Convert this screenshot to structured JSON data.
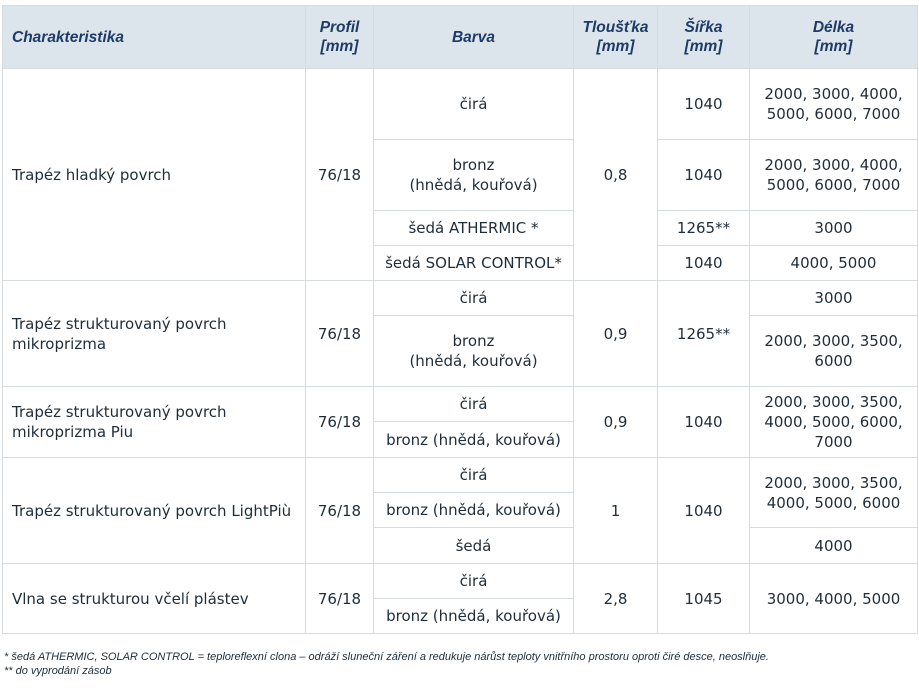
{
  "headers": {
    "charakteristika": "Charakteristika",
    "profil": "Profil\n[mm]",
    "barva": "Barva",
    "tloustka": "Tloušťka\n[mm]",
    "sirka": "Šířka\n[mm]",
    "delka": "Délka\n[mm]"
  },
  "groups": [
    {
      "name": "Trapéz hladký povrch",
      "profil": "76/18",
      "tloustka": "0,8",
      "rows": [
        {
          "barva": "čirá",
          "sirka": "1040",
          "delka": "2000, 3000, 4000,\n5000, 6000, 7000"
        },
        {
          "barva": "bronz\n(hnědá, kouřová)",
          "sirka": "1040",
          "delka": "2000, 3000, 4000,\n5000, 6000, 7000"
        },
        {
          "barva": "šedá ATHERMIC *",
          "sirka": "1265**",
          "delka": "3000"
        },
        {
          "barva": "šedá SOLAR CONTROL*",
          "sirka": "1040",
          "delka": "4000, 5000"
        }
      ]
    },
    {
      "name": "Trapéz strukturovaný povrch\nmikroprizma",
      "profil": "76/18",
      "tloustka": "0,9",
      "sirka": "1265**",
      "rows": [
        {
          "barva": "čirá",
          "delka": "3000"
        },
        {
          "barva": "bronz\n(hnědá, kouřová)",
          "delka": "2000, 3000, 3500,\n6000"
        }
      ]
    },
    {
      "name": "Trapéz strukturovaný povrch\nmikroprizma Piu",
      "profil": "76/18",
      "tloustka": "0,9",
      "sirka": "1040",
      "delka": "2000, 3000, 3500,\n4000, 5000, 6000,\n7000",
      "rows": [
        {
          "barva": "čirá"
        },
        {
          "barva": "bronz (hnědá, kouřová)"
        }
      ]
    },
    {
      "name": "Trapéz strukturovaný povrch LightPiù",
      "profil": "76/18",
      "tloustka": "1",
      "sirka": "1040",
      "delka_top": "2000, 3000, 3500,\n4000, 5000, 6000",
      "delka_bottom": "4000",
      "rows": [
        {
          "barva": "čirá"
        },
        {
          "barva": "bronz (hnědá, kouřová)"
        },
        {
          "barva": "šedá"
        }
      ]
    },
    {
      "name": "Vlna se strukturou včelí plástev",
      "profil": "76/18",
      "tloustka": "2,8",
      "sirka": "1045",
      "delka": "3000, 4000, 5000",
      "rows": [
        {
          "barva": "čirá"
        },
        {
          "barva": "bronz (hnědá, kouřová)"
        }
      ]
    }
  ],
  "footnotes": [
    "* šedá ATHERMIC, SOLAR CONTROL = teploreflexní clona – odráží sluneční záření a redukuje nárůst teploty vnitřního prostoru oproti čiré desce, neoslňuje.",
    "** do vyprodání zásob"
  ]
}
